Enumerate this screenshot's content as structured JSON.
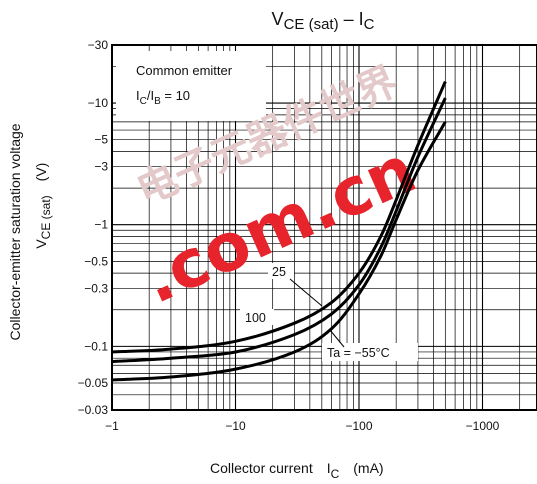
{
  "chart_data": {
    "type": "line",
    "title": "VCE (sat) – IC",
    "title_parts": {
      "main": "V",
      "sub1": "CE (sat)",
      "dash": " – I",
      "sub2": "C"
    },
    "xlabel": "Collector current",
    "xlabel_parts": {
      "main": "I",
      "sub": "C",
      "unit": "(mA)"
    },
    "ylabel": "Collector-emitter saturation voltage",
    "ylabel_parts": {
      "main": "V",
      "sub": "CE (sat)",
      "unit": "(V)"
    },
    "x_scale": "log",
    "y_scale": "log",
    "xlim": [
      1,
      3000
    ],
    "ylim": [
      0.03,
      30
    ],
    "x_ticks": [
      1,
      10,
      100,
      1000
    ],
    "x_tick_labels": [
      "−1",
      "−10",
      "−100",
      "−1000"
    ],
    "y_ticks": [
      0.03,
      0.05,
      0.1,
      0.3,
      0.5,
      1,
      3,
      5,
      10,
      30
    ],
    "y_tick_labels": [
      "−0.03",
      "−0.05",
      "−0.1",
      "−0.3",
      "−0.5",
      "−1",
      "−3",
      "−5",
      "−10",
      "−30"
    ],
    "grid": true,
    "annotation": {
      "line1": "Common emitter",
      "line2_main": "I",
      "line2_sub1": "C",
      "line2_mid": "/I",
      "line2_sub2": "B",
      "line2_end": " = 10"
    },
    "series": [
      {
        "name": "25",
        "x": [
          1,
          3,
          10,
          30,
          60,
          100,
          150,
          200,
          300,
          500
        ],
        "y": [
          0.09,
          0.095,
          0.11,
          0.155,
          0.23,
          0.4,
          0.8,
          1.6,
          4.5,
          15
        ]
      },
      {
        "name": "100",
        "x": [
          1,
          3,
          10,
          30,
          60,
          100,
          150,
          200,
          300,
          500
        ],
        "y": [
          0.075,
          0.08,
          0.09,
          0.125,
          0.185,
          0.32,
          0.65,
          1.3,
          3.6,
          11
        ]
      },
      {
        "name": "Ta = −55°C",
        "x": [
          1,
          3,
          10,
          30,
          60,
          100,
          150,
          200,
          300,
          500
        ],
        "y": [
          0.053,
          0.056,
          0.065,
          0.09,
          0.14,
          0.27,
          0.55,
          1.1,
          2.8,
          7
        ]
      }
    ]
  },
  "watermark": {
    "line1": "电子元器件世界",
    "line2": ".com.cn"
  }
}
